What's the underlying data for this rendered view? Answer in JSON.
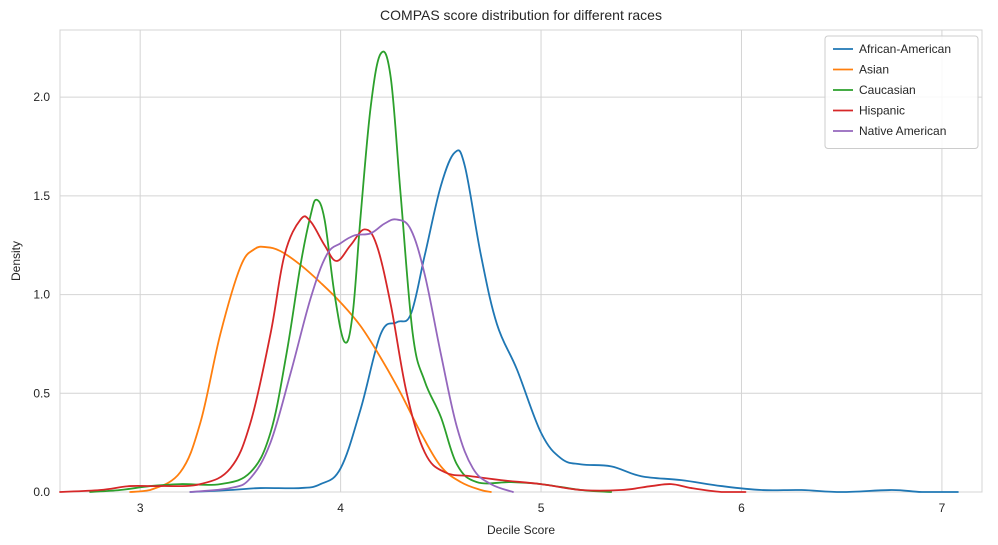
{
  "chart_data": {
    "type": "line",
    "title": "COMPAS score distribution for different races",
    "xlabel": "Decile Score",
    "ylabel": "Density",
    "xlim": [
      2.6,
      7.2
    ],
    "ylim": [
      0,
      2.34
    ],
    "xticks": [
      3,
      4,
      5,
      6,
      7
    ],
    "yticks": [
      0.0,
      0.5,
      1.0,
      1.5,
      2.0
    ],
    "xtick_labels": [
      "3",
      "4",
      "5",
      "6",
      "7"
    ],
    "ytick_labels": [
      "0.0",
      "0.5",
      "1.0",
      "1.5",
      "2.0"
    ],
    "grid": true,
    "legend_position": "top-right",
    "series": [
      {
        "name": "African-American",
        "color": "#1f77b4",
        "points": [
          [
            3.25,
            0.0
          ],
          [
            3.45,
            0.01
          ],
          [
            3.6,
            0.02
          ],
          [
            3.8,
            0.02
          ],
          [
            3.9,
            0.04
          ],
          [
            4.0,
            0.12
          ],
          [
            4.1,
            0.42
          ],
          [
            4.2,
            0.8
          ],
          [
            4.28,
            0.86
          ],
          [
            4.35,
            0.9
          ],
          [
            4.42,
            1.2
          ],
          [
            4.5,
            1.55
          ],
          [
            4.57,
            1.72
          ],
          [
            4.62,
            1.65
          ],
          [
            4.7,
            1.2
          ],
          [
            4.78,
            0.85
          ],
          [
            4.88,
            0.62
          ],
          [
            5.0,
            0.3
          ],
          [
            5.1,
            0.17
          ],
          [
            5.2,
            0.14
          ],
          [
            5.35,
            0.13
          ],
          [
            5.5,
            0.08
          ],
          [
            5.7,
            0.06
          ],
          [
            5.9,
            0.03
          ],
          [
            6.1,
            0.01
          ],
          [
            6.3,
            0.01
          ],
          [
            6.5,
            0.0
          ],
          [
            6.75,
            0.01
          ],
          [
            6.9,
            0.0
          ],
          [
            7.08,
            0.0
          ]
        ]
      },
      {
        "name": "Asian",
        "color": "#ff7f0e",
        "points": [
          [
            2.95,
            0.0
          ],
          [
            3.05,
            0.01
          ],
          [
            3.2,
            0.1
          ],
          [
            3.3,
            0.35
          ],
          [
            3.4,
            0.8
          ],
          [
            3.5,
            1.14
          ],
          [
            3.57,
            1.23
          ],
          [
            3.63,
            1.24
          ],
          [
            3.7,
            1.22
          ],
          [
            3.8,
            1.15
          ],
          [
            3.9,
            1.06
          ],
          [
            4.0,
            0.96
          ],
          [
            4.1,
            0.84
          ],
          [
            4.2,
            0.68
          ],
          [
            4.3,
            0.5
          ],
          [
            4.4,
            0.3
          ],
          [
            4.5,
            0.13
          ],
          [
            4.6,
            0.05
          ],
          [
            4.7,
            0.01
          ],
          [
            4.75,
            0.0
          ]
        ]
      },
      {
        "name": "Caucasian",
        "color": "#2ca02c",
        "points": [
          [
            2.75,
            0.0
          ],
          [
            2.9,
            0.01
          ],
          [
            3.05,
            0.03
          ],
          [
            3.2,
            0.04
          ],
          [
            3.4,
            0.04
          ],
          [
            3.55,
            0.1
          ],
          [
            3.65,
            0.3
          ],
          [
            3.73,
            0.7
          ],
          [
            3.8,
            1.15
          ],
          [
            3.85,
            1.4
          ],
          [
            3.88,
            1.48
          ],
          [
            3.92,
            1.38
          ],
          [
            3.97,
            1.0
          ],
          [
            4.02,
            0.76
          ],
          [
            4.06,
            0.9
          ],
          [
            4.1,
            1.4
          ],
          [
            4.15,
            1.95
          ],
          [
            4.2,
            2.22
          ],
          [
            4.25,
            2.1
          ],
          [
            4.3,
            1.5
          ],
          [
            4.36,
            0.8
          ],
          [
            4.42,
            0.56
          ],
          [
            4.5,
            0.38
          ],
          [
            4.58,
            0.14
          ],
          [
            4.68,
            0.05
          ],
          [
            4.85,
            0.05
          ],
          [
            5.0,
            0.04
          ],
          [
            5.2,
            0.01
          ],
          [
            5.35,
            0.0
          ]
        ]
      },
      {
        "name": "Hispanic",
        "color": "#d62728",
        "points": [
          [
            2.6,
            0.0
          ],
          [
            2.8,
            0.01
          ],
          [
            2.95,
            0.03
          ],
          [
            3.1,
            0.03
          ],
          [
            3.3,
            0.04
          ],
          [
            3.45,
            0.12
          ],
          [
            3.55,
            0.35
          ],
          [
            3.65,
            0.8
          ],
          [
            3.72,
            1.2
          ],
          [
            3.8,
            1.38
          ],
          [
            3.85,
            1.37
          ],
          [
            3.92,
            1.25
          ],
          [
            3.98,
            1.17
          ],
          [
            4.05,
            1.25
          ],
          [
            4.12,
            1.33
          ],
          [
            4.18,
            1.25
          ],
          [
            4.25,
            0.95
          ],
          [
            4.33,
            0.5
          ],
          [
            4.42,
            0.2
          ],
          [
            4.52,
            0.1
          ],
          [
            4.65,
            0.08
          ],
          [
            4.8,
            0.06
          ],
          [
            5.0,
            0.04
          ],
          [
            5.2,
            0.01
          ],
          [
            5.4,
            0.01
          ],
          [
            5.55,
            0.03
          ],
          [
            5.65,
            0.04
          ],
          [
            5.75,
            0.02
          ],
          [
            5.9,
            0.0
          ],
          [
            6.02,
            0.0
          ]
        ]
      },
      {
        "name": "Native American",
        "color": "#9467bd",
        "points": [
          [
            3.25,
            0.0
          ],
          [
            3.45,
            0.02
          ],
          [
            3.55,
            0.07
          ],
          [
            3.65,
            0.25
          ],
          [
            3.75,
            0.6
          ],
          [
            3.85,
            0.98
          ],
          [
            3.93,
            1.2
          ],
          [
            4.0,
            1.26
          ],
          [
            4.07,
            1.3
          ],
          [
            4.15,
            1.31
          ],
          [
            4.22,
            1.36
          ],
          [
            4.28,
            1.38
          ],
          [
            4.35,
            1.33
          ],
          [
            4.42,
            1.1
          ],
          [
            4.5,
            0.7
          ],
          [
            4.58,
            0.33
          ],
          [
            4.66,
            0.12
          ],
          [
            4.75,
            0.04
          ],
          [
            4.86,
            0.0
          ]
        ]
      }
    ]
  }
}
